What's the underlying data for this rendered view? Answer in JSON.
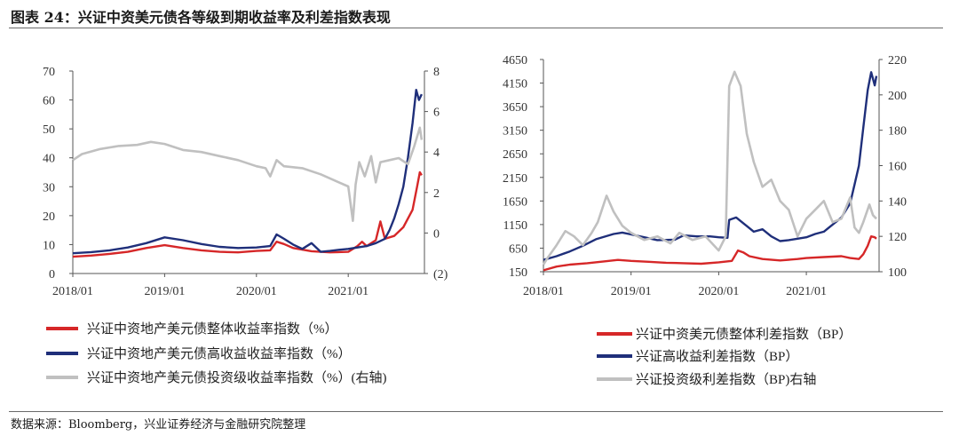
{
  "figure": {
    "title": "图表 24：兴证中资美元债各等级到期收益率及利差指数表现",
    "source": "数据来源：Bloomberg，兴业证券经济与金融研究院整理"
  },
  "chart_data": [
    {
      "type": "line",
      "title": "",
      "x_ticks": [
        "2018/01",
        "2019/01",
        "2020/01",
        "2021/01"
      ],
      "left_axis": {
        "ylim": [
          0,
          70
        ],
        "ticks": [
          "0",
          "10",
          "20",
          "30",
          "40",
          "50",
          "60",
          "70"
        ]
      },
      "right_axis": {
        "ylim": [
          -2,
          8
        ],
        "ticks": [
          "(2)",
          "0",
          "2",
          "4",
          "6",
          "8"
        ]
      },
      "series": [
        {
          "name": "兴证中资地产美元债整体收益率指数（%）",
          "color": "#d62728",
          "axis": "left",
          "points": [
            [
              2018.0,
              5.8
            ],
            [
              2018.2,
              6.2
            ],
            [
              2018.4,
              6.8
            ],
            [
              2018.6,
              7.5
            ],
            [
              2018.8,
              8.8
            ],
            [
              2019.0,
              9.8
            ],
            [
              2019.2,
              8.8
            ],
            [
              2019.4,
              8.0
            ],
            [
              2019.6,
              7.5
            ],
            [
              2019.8,
              7.3
            ],
            [
              2020.0,
              7.8
            ],
            [
              2020.15,
              8.0
            ],
            [
              2020.22,
              11.0
            ],
            [
              2020.3,
              10.2
            ],
            [
              2020.4,
              8.8
            ],
            [
              2020.6,
              7.7
            ],
            [
              2020.8,
              7.3
            ],
            [
              2021.0,
              7.5
            ],
            [
              2021.05,
              8.5
            ],
            [
              2021.1,
              9.5
            ],
            [
              2021.15,
              11.0
            ],
            [
              2021.2,
              9.5
            ],
            [
              2021.3,
              11.5
            ],
            [
              2021.35,
              18.0
            ],
            [
              2021.4,
              12.0
            ],
            [
              2021.5,
              13.0
            ],
            [
              2021.6,
              16.0
            ],
            [
              2021.7,
              22.0
            ],
            [
              2021.75,
              30.0
            ],
            [
              2021.78,
              35.0
            ],
            [
              2021.8,
              34.0
            ]
          ]
        },
        {
          "name": "兴证中资地产美元债高收益收益率指数（%）",
          "color": "#1f2f7a",
          "axis": "left",
          "points": [
            [
              2018.0,
              7.0
            ],
            [
              2018.2,
              7.4
            ],
            [
              2018.4,
              8.0
            ],
            [
              2018.6,
              9.0
            ],
            [
              2018.8,
              10.5
            ],
            [
              2019.0,
              12.5
            ],
            [
              2019.2,
              11.5
            ],
            [
              2019.4,
              10.2
            ],
            [
              2019.6,
              9.2
            ],
            [
              2019.8,
              8.8
            ],
            [
              2020.0,
              9.0
            ],
            [
              2020.15,
              9.5
            ],
            [
              2020.22,
              13.5
            ],
            [
              2020.3,
              12.0
            ],
            [
              2020.4,
              10.0
            ],
            [
              2020.5,
              8.5
            ],
            [
              2020.6,
              10.5
            ],
            [
              2020.7,
              7.5
            ],
            [
              2020.8,
              7.8
            ],
            [
              2020.9,
              8.2
            ],
            [
              2021.0,
              8.5
            ],
            [
              2021.2,
              9.5
            ],
            [
              2021.3,
              10.5
            ],
            [
              2021.4,
              12.0
            ],
            [
              2021.45,
              15.0
            ],
            [
              2021.5,
              19.0
            ],
            [
              2021.55,
              24.0
            ],
            [
              2021.6,
              30.0
            ],
            [
              2021.65,
              40.0
            ],
            [
              2021.7,
              52.0
            ],
            [
              2021.74,
              63.5
            ],
            [
              2021.77,
              60.0
            ],
            [
              2021.8,
              62.0
            ]
          ]
        },
        {
          "name": "兴证中资地产美元债投资级收益率指数（%）(右轴)",
          "color": "#c0c0c0",
          "axis": "right",
          "points": [
            [
              2018.0,
              3.6
            ],
            [
              2018.1,
              3.9
            ],
            [
              2018.3,
              4.15
            ],
            [
              2018.5,
              4.3
            ],
            [
              2018.7,
              4.35
            ],
            [
              2018.85,
              4.5
            ],
            [
              2019.0,
              4.4
            ],
            [
              2019.2,
              4.1
            ],
            [
              2019.4,
              4.0
            ],
            [
              2019.6,
              3.8
            ],
            [
              2019.8,
              3.6
            ],
            [
              2020.0,
              3.3
            ],
            [
              2020.1,
              3.2
            ],
            [
              2020.15,
              2.8
            ],
            [
              2020.22,
              3.6
            ],
            [
              2020.3,
              3.3
            ],
            [
              2020.5,
              3.2
            ],
            [
              2020.7,
              2.9
            ],
            [
              2020.9,
              2.5
            ],
            [
              2021.0,
              2.3
            ],
            [
              2021.05,
              0.6
            ],
            [
              2021.08,
              2.4
            ],
            [
              2021.12,
              3.5
            ],
            [
              2021.18,
              2.8
            ],
            [
              2021.25,
              3.8
            ],
            [
              2021.3,
              2.5
            ],
            [
              2021.35,
              3.5
            ],
            [
              2021.45,
              3.6
            ],
            [
              2021.55,
              3.7
            ],
            [
              2021.65,
              3.4
            ],
            [
              2021.72,
              4.3
            ],
            [
              2021.78,
              5.2
            ],
            [
              2021.8,
              4.6
            ]
          ]
        }
      ]
    },
    {
      "type": "line",
      "title": "",
      "x_ticks": [
        "2018/01",
        "2019/01",
        "2020/01",
        "2021/01"
      ],
      "left_axis": {
        "ylim": [
          150,
          4650
        ],
        "ticks": [
          "150",
          "650",
          "1150",
          "1650",
          "2150",
          "2650",
          "3150",
          "3650",
          "4150",
          "4650"
        ]
      },
      "right_axis": {
        "ylim": [
          100,
          220
        ],
        "ticks": [
          "100",
          "120",
          "140",
          "160",
          "180",
          "200",
          "220"
        ]
      },
      "series": [
        {
          "name": "兴证中资美元债整体利差指数（BP）",
          "color": "#d62728",
          "axis": "left",
          "points": [
            [
              2018.0,
              180
            ],
            [
              2018.15,
              260
            ],
            [
              2018.3,
              300
            ],
            [
              2018.5,
              330
            ],
            [
              2018.7,
              370
            ],
            [
              2018.85,
              400
            ],
            [
              2019.0,
              380
            ],
            [
              2019.2,
              360
            ],
            [
              2019.4,
              340
            ],
            [
              2019.6,
              330
            ],
            [
              2019.8,
              320
            ],
            [
              2020.0,
              350
            ],
            [
              2020.15,
              380
            ],
            [
              2020.22,
              600
            ],
            [
              2020.28,
              560
            ],
            [
              2020.35,
              480
            ],
            [
              2020.5,
              420
            ],
            [
              2020.7,
              390
            ],
            [
              2020.9,
              420
            ],
            [
              2021.0,
              440
            ],
            [
              2021.2,
              460
            ],
            [
              2021.4,
              480
            ],
            [
              2021.5,
              440
            ],
            [
              2021.6,
              420
            ],
            [
              2021.65,
              520
            ],
            [
              2021.7,
              700
            ],
            [
              2021.74,
              900
            ],
            [
              2021.78,
              880
            ],
            [
              2021.8,
              850
            ]
          ]
        },
        {
          "name": "兴证高收益利差指数（BP）",
          "color": "#1f2f7a",
          "axis": "left",
          "points": [
            [
              2018.0,
              400
            ],
            [
              2018.15,
              480
            ],
            [
              2018.3,
              580
            ],
            [
              2018.45,
              700
            ],
            [
              2018.6,
              840
            ],
            [
              2018.8,
              950
            ],
            [
              2018.9,
              980
            ],
            [
              2019.0,
              940
            ],
            [
              2019.15,
              880
            ],
            [
              2019.3,
              820
            ],
            [
              2019.5,
              830
            ],
            [
              2019.6,
              920
            ],
            [
              2019.75,
              900
            ],
            [
              2019.9,
              900
            ],
            [
              2020.0,
              880
            ],
            [
              2020.1,
              870
            ],
            [
              2020.12,
              1250
            ],
            [
              2020.2,
              1300
            ],
            [
              2020.3,
              1150
            ],
            [
              2020.4,
              1000
            ],
            [
              2020.5,
              1050
            ],
            [
              2020.6,
              900
            ],
            [
              2020.7,
              800
            ],
            [
              2020.8,
              820
            ],
            [
              2020.9,
              850
            ],
            [
              2021.0,
              880
            ],
            [
              2021.1,
              950
            ],
            [
              2021.2,
              1000
            ],
            [
              2021.3,
              1150
            ],
            [
              2021.4,
              1300
            ],
            [
              2021.5,
              1600
            ],
            [
              2021.55,
              2000
            ],
            [
              2021.6,
              2400
            ],
            [
              2021.65,
              3200
            ],
            [
              2021.7,
              4000
            ],
            [
              2021.74,
              4380
            ],
            [
              2021.78,
              4100
            ],
            [
              2021.8,
              4300
            ]
          ]
        },
        {
          "name": "兴证投资级利差指数（BP)右轴",
          "color": "#c0c0c0",
          "axis": "right",
          "points": [
            [
              2018.0,
              104
            ],
            [
              2018.05,
              108
            ],
            [
              2018.15,
              115
            ],
            [
              2018.25,
              123
            ],
            [
              2018.35,
              120
            ],
            [
              2018.45,
              115
            ],
            [
              2018.55,
              122
            ],
            [
              2018.62,
              128
            ],
            [
              2018.72,
              143
            ],
            [
              2018.8,
              134
            ],
            [
              2018.9,
              126
            ],
            [
              2019.0,
              122
            ],
            [
              2019.15,
              118
            ],
            [
              2019.3,
              120
            ],
            [
              2019.45,
              116
            ],
            [
              2019.55,
              122
            ],
            [
              2019.7,
              118
            ],
            [
              2019.85,
              120
            ],
            [
              2020.0,
              112
            ],
            [
              2020.08,
              120
            ],
            [
              2020.12,
              205
            ],
            [
              2020.18,
              213
            ],
            [
              2020.25,
              205
            ],
            [
              2020.32,
              178
            ],
            [
              2020.4,
              162
            ],
            [
              2020.5,
              148
            ],
            [
              2020.6,
              152
            ],
            [
              2020.7,
              140
            ],
            [
              2020.8,
              135
            ],
            [
              2020.9,
              120
            ],
            [
              2021.0,
              130
            ],
            [
              2021.1,
              135
            ],
            [
              2021.2,
              140
            ],
            [
              2021.3,
              128
            ],
            [
              2021.4,
              130
            ],
            [
              2021.5,
              142
            ],
            [
              2021.55,
              125
            ],
            [
              2021.6,
              122
            ],
            [
              2021.65,
              128
            ],
            [
              2021.72,
              138
            ],
            [
              2021.76,
              132
            ],
            [
              2021.8,
              130
            ]
          ]
        }
      ]
    }
  ]
}
